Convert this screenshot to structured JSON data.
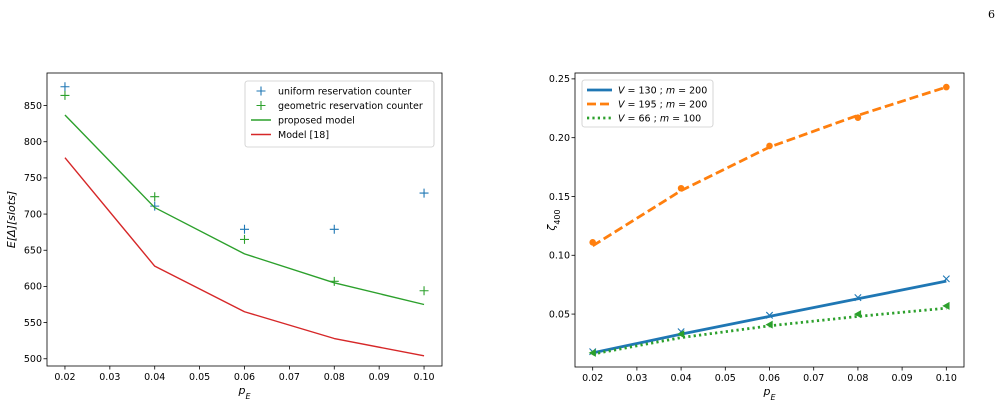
{
  "page_number": "6",
  "chart_data": [
    {
      "type": "scatter",
      "xlabel": "p_E",
      "ylabel": "E[Δ][slots]",
      "xlim": [
        0.016,
        0.104
      ],
      "ylim": [
        490,
        895
      ],
      "xticks": [
        0.02,
        0.03,
        0.04,
        0.05,
        0.06,
        0.07,
        0.08,
        0.09,
        0.1
      ],
      "xtick_labels": [
        "0.02",
        "0.03",
        "0.04",
        "0.05",
        "0.06",
        "0.07",
        "0.08",
        "0.09",
        "0.10"
      ],
      "yticks": [
        500,
        550,
        600,
        650,
        700,
        750,
        800,
        850
      ],
      "ytick_labels": [
        "500",
        "550",
        "600",
        "650",
        "700",
        "750",
        "800",
        "850"
      ],
      "legend_position": "top-right",
      "series": [
        {
          "name": "uniform reservation counter",
          "style": "plus",
          "color": "#1f77b4",
          "x": [
            0.02,
            0.04,
            0.06,
            0.08,
            0.1
          ],
          "y": [
            876,
            711,
            679,
            679,
            729
          ]
        },
        {
          "name": "geometric reservation counter",
          "style": "plus",
          "color": "#2ca02c",
          "x": [
            0.02,
            0.04,
            0.06,
            0.08,
            0.1
          ],
          "y": [
            864,
            724,
            665,
            607,
            594
          ]
        },
        {
          "name": "proposed model",
          "style": "line",
          "color": "#2ca02c",
          "x": [
            0.02,
            0.04,
            0.06,
            0.08,
            0.1
          ],
          "y": [
            837,
            709,
            645,
            605,
            575
          ]
        },
        {
          "name": "Model [18]",
          "style": "line",
          "color": "#d62728",
          "x": [
            0.02,
            0.04,
            0.06,
            0.08,
            0.1
          ],
          "y": [
            778,
            628,
            565,
            528,
            504
          ]
        }
      ]
    },
    {
      "type": "line",
      "xlabel": "p_E",
      "ylabel": "ζ_400",
      "xlim": [
        0.016,
        0.104
      ],
      "ylim": [
        0.005,
        0.255
      ],
      "xticks": [
        0.02,
        0.03,
        0.04,
        0.05,
        0.06,
        0.07,
        0.08,
        0.09,
        0.1
      ],
      "xtick_labels": [
        "0.02",
        "0.03",
        "0.04",
        "0.05",
        "0.06",
        "0.07",
        "0.08",
        "0.09",
        "0.10"
      ],
      "yticks": [
        0.05,
        0.1,
        0.15,
        0.2,
        0.25
      ],
      "ytick_labels": [
        "0.05",
        "0.10",
        "0.15",
        "0.20",
        "0.25"
      ],
      "legend_position": "top-left",
      "series": [
        {
          "name": "V = 130 ; m = 200",
          "style": "solid",
          "marker": "x",
          "color": "#1f77b4",
          "x": [
            0.02,
            0.04,
            0.06,
            0.08,
            0.1
          ],
          "line_y": [
            0.017,
            0.033,
            0.048,
            0.063,
            0.078
          ],
          "marker_y": [
            0.018,
            0.035,
            0.049,
            0.064,
            0.08
          ]
        },
        {
          "name": "V = 195 ; m = 200",
          "style": "dashed",
          "marker": "circle",
          "color": "#ff7f0e",
          "x": [
            0.02,
            0.04,
            0.06,
            0.08,
            0.1
          ],
          "line_y": [
            0.108,
            0.155,
            0.192,
            0.219,
            0.243
          ],
          "marker_y": [
            0.111,
            0.157,
            0.193,
            0.217,
            0.243
          ]
        },
        {
          "name": "V = 66 ; m = 100",
          "style": "dotted",
          "marker": "triangle-left",
          "color": "#2ca02c",
          "x": [
            0.02,
            0.04,
            0.06,
            0.08,
            0.1
          ],
          "line_y": [
            0.016,
            0.03,
            0.04,
            0.048,
            0.055
          ],
          "marker_y": [
            0.017,
            0.033,
            0.041,
            0.05,
            0.057
          ]
        }
      ]
    }
  ]
}
